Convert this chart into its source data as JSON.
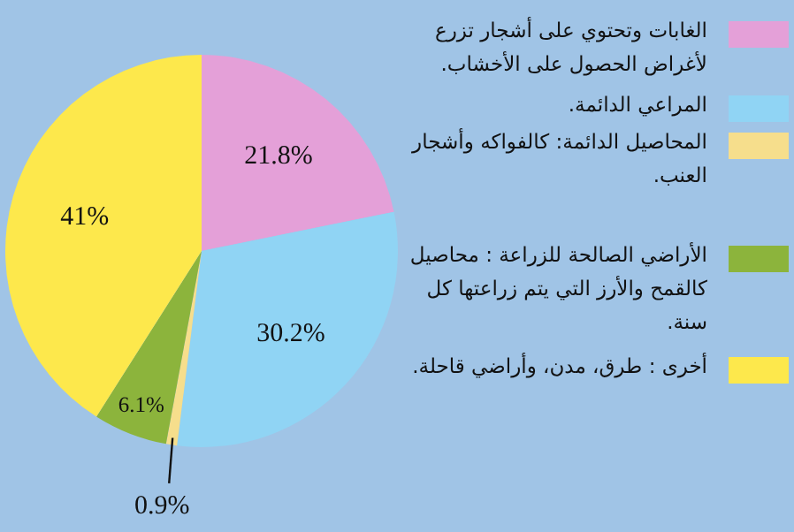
{
  "chart_data": {
    "type": "pie",
    "categories": [
      "الغابات وتحتوي على أشجار تزرع لأغراض الحصول على الأخشاب.",
      "المراعي الدائمة.",
      "المحاصيل الدائمة: كالفواكه وأشجار العنب.",
      "الأراضي الصالحة للزراعة : محاصيل كالقمح والأرز التي يتم زراعتها كل سنة.",
      "أخرى : طرق، مدن، وأراضي قاحلة."
    ],
    "values": [
      21.8,
      30.2,
      0.9,
      6.1,
      41
    ],
    "value_labels": [
      "21.8%",
      "30.2%",
      "0.9%",
      "6.1%",
      "41%"
    ],
    "colors": [
      "#e4a0d8",
      "#90d4f4",
      "#f6de8c",
      "#8cb43c",
      "#fde84c"
    ],
    "legend": "right"
  }
}
